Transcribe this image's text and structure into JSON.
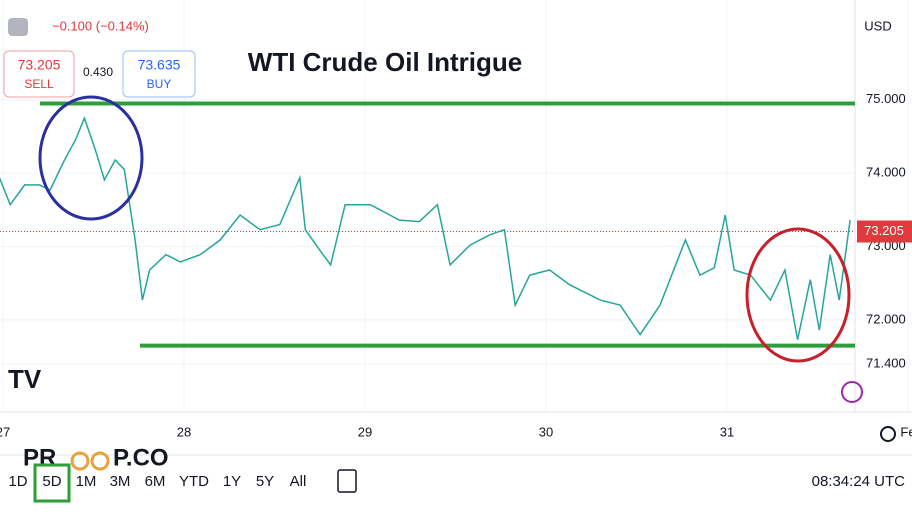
{
  "header": {
    "change": "−0.100 (−0.14%)",
    "sell": {
      "price": "73.205",
      "label": "SELL"
    },
    "spread": "0.430",
    "buy": {
      "price": "73.635",
      "label": "BUY"
    },
    "currency": "USD"
  },
  "chart_data": {
    "type": "line",
    "title": "WTI Crude Oil Intrigue",
    "x": [
      26.98,
      27.04,
      27.12,
      27.2,
      27.26,
      27.34,
      27.4,
      27.45,
      27.51,
      27.56,
      27.62,
      27.67,
      27.73,
      27.77,
      27.81,
      27.9,
      27.98,
      28.09,
      28.2,
      28.31,
      28.42,
      28.53,
      28.64,
      28.67,
      28.75,
      28.81,
      28.89,
      29.03,
      29.19,
      29.3,
      29.4,
      29.47,
      29.58,
      29.69,
      29.77,
      29.83,
      29.91,
      30.02,
      30.13,
      30.3,
      30.41,
      30.52,
      30.63,
      30.77,
      30.85,
      30.93,
      30.99,
      31.04,
      31.13,
      31.24,
      31.32,
      31.39,
      31.46,
      31.51,
      31.57,
      31.62,
      31.68
    ],
    "series": [
      {
        "color": "#26a69a",
        "values": [
          73.94,
          73.57,
          73.84,
          73.84,
          73.77,
          74.18,
          74.45,
          74.75,
          74.32,
          73.91,
          74.18,
          74.05,
          73.09,
          72.27,
          72.68,
          72.89,
          72.79,
          72.89,
          73.09,
          73.43,
          73.23,
          73.3,
          73.94,
          73.23,
          72.95,
          72.75,
          73.57,
          73.57,
          73.36,
          73.34,
          73.57,
          72.75,
          73.02,
          73.16,
          73.23,
          72.2,
          72.61,
          72.68,
          72.48,
          72.27,
          72.2,
          71.8,
          72.2,
          73.09,
          72.61,
          72.71,
          73.43,
          72.68,
          72.61,
          72.27,
          72.68,
          71.73,
          72.55,
          71.86,
          72.89,
          72.27,
          73.36
        ]
      }
    ],
    "levels": [
      {
        "value": 74.95,
        "color": "#2e9e3a"
      },
      {
        "value": 71.65,
        "color": "#2e9e3a"
      }
    ],
    "last": {
      "value": 73.205,
      "label": "73.205",
      "color": "#e0393e"
    },
    "xlim": [
      26.98,
      31.7
    ],
    "ylim": [
      70.745,
      76.36
    ],
    "xticks": [
      {
        "value": 27,
        "label": "27"
      },
      28,
      29,
      30,
      31,
      {
        "value": 32,
        "label": "Fe"
      }
    ],
    "yticks": [
      {
        "value": 75,
        "label": "75.000"
      },
      {
        "value": 74,
        "label": "74.000"
      },
      {
        "value": 73,
        "label": "73.000"
      },
      {
        "value": 72,
        "label": "72.000"
      },
      {
        "value": 71.4,
        "label": "71.400"
      }
    ]
  },
  "footer": {
    "logo": {
      "left": "PR",
      "right": "P.CO"
    },
    "timeframes": [
      "1D",
      "5D",
      "1M",
      "3M",
      "6M",
      "YTD",
      "1Y",
      "5Y",
      "All"
    ],
    "selected": 1,
    "time": "08:34:24 UTC"
  }
}
